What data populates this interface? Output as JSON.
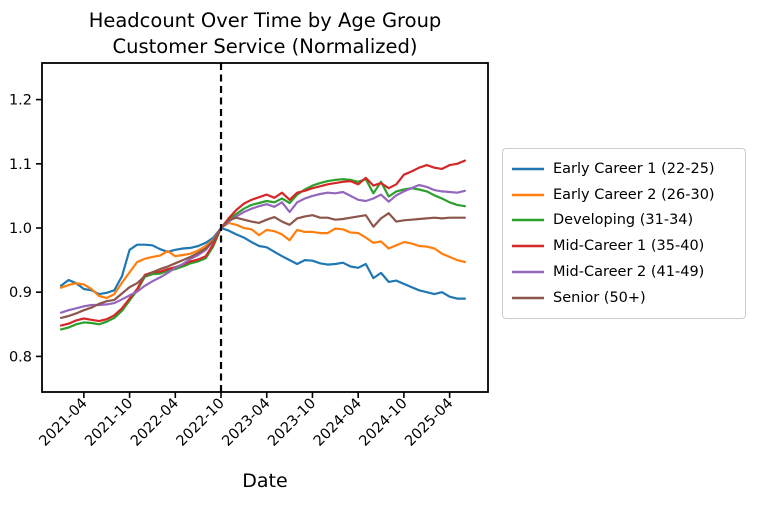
{
  "chart_data": {
    "type": "line",
    "title": "Headcount Over Time by Age Group",
    "subtitle": "Customer Service (Normalized)",
    "xlabel": "Date",
    "ylabel": "",
    "grid": false,
    "legend_position": "right of plot, vertically centered",
    "yticks": [
      0.8,
      0.9,
      1.0,
      1.1,
      1.2
    ],
    "ylim": [
      0.745,
      1.257
    ],
    "x_tick_labels": [
      "2021-04",
      "2021-10",
      "2022-04",
      "2022-10",
      "2023-04",
      "2023-10",
      "2024-04",
      "2024-10",
      "2025-04"
    ],
    "x_tick_rotation_deg": 45,
    "normalization_vline": "2022-10",
    "vline_style": "black dashed",
    "categories": [
      "2021-01",
      "2021-02",
      "2021-03",
      "2021-04",
      "2021-05",
      "2021-06",
      "2021-07",
      "2021-08",
      "2021-09",
      "2021-10",
      "2021-11",
      "2021-12",
      "2022-01",
      "2022-02",
      "2022-03",
      "2022-04",
      "2022-05",
      "2022-06",
      "2022-07",
      "2022-08",
      "2022-09",
      "2022-10",
      "2022-11",
      "2022-12",
      "2023-01",
      "2023-02",
      "2023-03",
      "2023-04",
      "2023-05",
      "2023-06",
      "2023-07",
      "2023-08",
      "2023-09",
      "2023-10",
      "2023-11",
      "2023-12",
      "2024-01",
      "2024-02",
      "2024-03",
      "2024-04",
      "2024-05",
      "2024-06",
      "2024-07",
      "2024-08",
      "2024-09",
      "2024-10",
      "2024-11",
      "2024-12",
      "2025-01",
      "2025-02",
      "2025-03",
      "2025-04",
      "2025-05",
      "2025-06"
    ],
    "series": [
      {
        "name": "Early Career 1 (22-25)",
        "color": "#1f77b4",
        "values": [
          0.91,
          0.919,
          0.914,
          0.905,
          0.903,
          0.897,
          0.899,
          0.903,
          0.925,
          0.966,
          0.974,
          0.974,
          0.973,
          0.967,
          0.963,
          0.966,
          0.968,
          0.969,
          0.972,
          0.977,
          0.985,
          1.0,
          0.996,
          0.99,
          0.985,
          0.978,
          0.972,
          0.97,
          0.963,
          0.956,
          0.95,
          0.944,
          0.95,
          0.949,
          0.945,
          0.943,
          0.944,
          0.946,
          0.94,
          0.938,
          0.944,
          0.922,
          0.93,
          0.916,
          0.918,
          0.913,
          0.908,
          0.903,
          0.9,
          0.897,
          0.9,
          0.893,
          0.89,
          0.89
        ]
      },
      {
        "name": "Early Career 2 (26-30)",
        "color": "#ff7f0e",
        "values": [
          0.907,
          0.911,
          0.914,
          0.912,
          0.905,
          0.894,
          0.891,
          0.897,
          0.915,
          0.931,
          0.947,
          0.952,
          0.955,
          0.957,
          0.964,
          0.956,
          0.958,
          0.96,
          0.965,
          0.972,
          0.982,
          1.0,
          1.008,
          1.005,
          1.0,
          0.998,
          0.989,
          0.997,
          0.995,
          0.99,
          0.981,
          0.997,
          0.994,
          0.994,
          0.992,
          0.992,
          0.999,
          0.998,
          0.993,
          0.992,
          0.985,
          0.977,
          0.979,
          0.968,
          0.973,
          0.978,
          0.976,
          0.972,
          0.971,
          0.968,
          0.96,
          0.955,
          0.95,
          0.947
        ]
      },
      {
        "name": "Developing (31-34)",
        "color": "#2ca02c",
        "values": [
          0.842,
          0.845,
          0.85,
          0.853,
          0.852,
          0.85,
          0.854,
          0.86,
          0.871,
          0.887,
          0.903,
          0.924,
          0.928,
          0.929,
          0.933,
          0.936,
          0.94,
          0.945,
          0.948,
          0.953,
          0.972,
          1.0,
          1.012,
          1.022,
          1.03,
          1.036,
          1.039,
          1.042,
          1.04,
          1.046,
          1.039,
          1.052,
          1.06,
          1.066,
          1.07,
          1.073,
          1.075,
          1.076,
          1.075,
          1.072,
          1.076,
          1.054,
          1.072,
          1.049,
          1.057,
          1.06,
          1.062,
          1.06,
          1.057,
          1.051,
          1.046,
          1.04,
          1.036,
          1.034
        ]
      },
      {
        "name": "Mid-Career 1 (35-40)",
        "color": "#d62728",
        "values": [
          0.848,
          0.851,
          0.856,
          0.859,
          0.857,
          0.855,
          0.858,
          0.864,
          0.875,
          0.89,
          0.905,
          0.927,
          0.931,
          0.932,
          0.936,
          0.939,
          0.943,
          0.948,
          0.951,
          0.956,
          0.975,
          1.0,
          1.015,
          1.028,
          1.038,
          1.044,
          1.048,
          1.052,
          1.047,
          1.055,
          1.044,
          1.055,
          1.058,
          1.062,
          1.065,
          1.068,
          1.07,
          1.072,
          1.073,
          1.068,
          1.078,
          1.066,
          1.07,
          1.062,
          1.068,
          1.083,
          1.088,
          1.094,
          1.098,
          1.094,
          1.092,
          1.098,
          1.1,
          1.105
        ]
      },
      {
        "name": "Mid-Career 2 (41-49)",
        "color": "#9467bd",
        "values": [
          0.868,
          0.872,
          0.875,
          0.878,
          0.88,
          0.88,
          0.881,
          0.883,
          0.889,
          0.895,
          0.901,
          0.91,
          0.917,
          0.923,
          0.93,
          0.938,
          0.944,
          0.952,
          0.958,
          0.966,
          0.98,
          1.0,
          1.01,
          1.018,
          1.025,
          1.03,
          1.034,
          1.037,
          1.033,
          1.04,
          1.025,
          1.04,
          1.046,
          1.05,
          1.053,
          1.055,
          1.054,
          1.056,
          1.05,
          1.044,
          1.042,
          1.046,
          1.052,
          1.041,
          1.051,
          1.057,
          1.062,
          1.067,
          1.064,
          1.059,
          1.057,
          1.056,
          1.055,
          1.058
        ]
      },
      {
        "name": "Senior (50+)",
        "color": "#8c564b",
        "values": [
          0.86,
          0.863,
          0.867,
          0.872,
          0.876,
          0.882,
          0.886,
          0.888,
          0.898,
          0.908,
          0.914,
          0.925,
          0.931,
          0.936,
          0.94,
          0.945,
          0.95,
          0.955,
          0.961,
          0.968,
          0.98,
          1.0,
          1.012,
          1.016,
          1.013,
          1.01,
          1.008,
          1.013,
          1.017,
          1.01,
          1.005,
          1.015,
          1.018,
          1.02,
          1.016,
          1.016,
          1.013,
          1.014,
          1.016,
          1.018,
          1.02,
          1.002,
          1.015,
          1.023,
          1.01,
          1.012,
          1.013,
          1.014,
          1.015,
          1.016,
          1.015,
          1.016,
          1.016,
          1.016
        ]
      }
    ]
  }
}
